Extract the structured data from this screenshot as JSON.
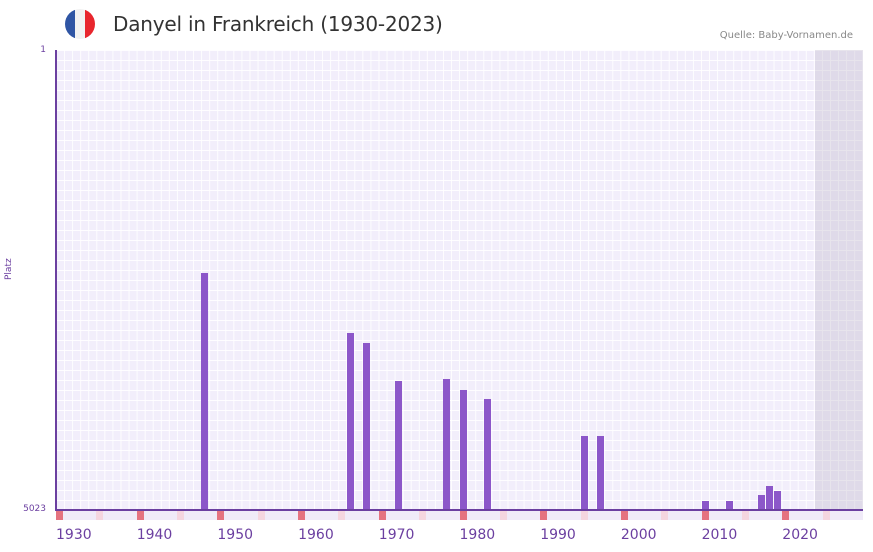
{
  "header": {
    "title": "Danyel in Frankreich (1930-2023)",
    "source": "Quelle: Baby-Vornamen.de",
    "flag_colors": [
      "#2f55a4",
      "#f2f2f2",
      "#e8262d"
    ],
    "flag_icon": "france-flag-icon"
  },
  "colors": {
    "bar": "#8c57c9",
    "axis": "#6b3fa0",
    "grid_bg": "#f2eefb",
    "decade_marker": "#e57380",
    "half_decade_marker": "#f5d6df"
  },
  "chart_data": {
    "type": "bar",
    "title": "Danyel in Frankreich (1930-2023)",
    "xlabel": "",
    "ylabel": "Platz",
    "y_inverted": true,
    "ylim": [
      1,
      5023
    ],
    "ytick_labels": [
      "1",
      "5023"
    ],
    "xlim": [
      1930,
      2029
    ],
    "xtick_labels": [
      "1930",
      "1940",
      "1950",
      "1960",
      "1970",
      "1980",
      "1990",
      "2000",
      "2010",
      "2020"
    ],
    "future_shaded_from": 2024,
    "grid": true,
    "categories": [
      1948,
      1966,
      1968,
      1972,
      1978,
      1980,
      1983,
      1995,
      1997,
      2010,
      2013,
      2017,
      2018,
      2019
    ],
    "values": [
      2436,
      3091,
      3200,
      3615,
      3593,
      3713,
      3811,
      4215,
      4215,
      4925,
      4925,
      4859,
      4761,
      4816
    ]
  },
  "axis": {
    "y_top": "1",
    "y_bottom": "5023",
    "y_title": "Platz"
  }
}
